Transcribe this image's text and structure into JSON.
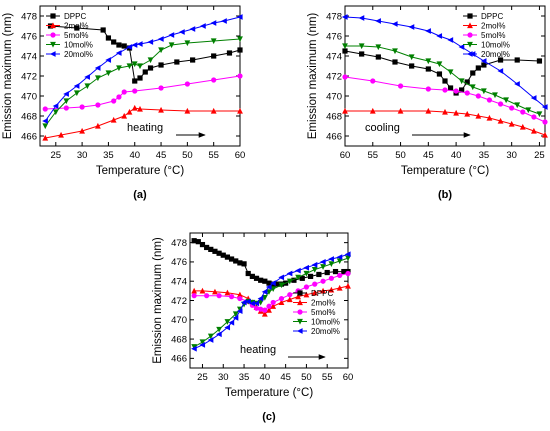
{
  "series_style": [
    {
      "name": "DPPC",
      "color": "#000000",
      "marker": "square"
    },
    {
      "name": "2mol%",
      "color": "#ff0000",
      "marker": "triangle-up"
    },
    {
      "name": "5mol%",
      "color": "#ff00ff",
      "marker": "circle"
    },
    {
      "name": "10mol%",
      "color": "#008000",
      "marker": "triangle-down"
    },
    {
      "name": "20mol%",
      "color": "#0000ff",
      "marker": "triangle-left"
    }
  ],
  "chart_data": [
    {
      "type": "line",
      "panel_label": "(a)",
      "xlabel": "Temperature (°C)",
      "ylabel": "Emission maximum (nm)",
      "xlim": [
        22,
        60
      ],
      "ylim": [
        465,
        479
      ],
      "x_ticks": [
        25,
        30,
        35,
        40,
        45,
        50,
        55,
        60
      ],
      "y_ticks": [
        466,
        468,
        470,
        472,
        474,
        476,
        478
      ],
      "annotation": "heating",
      "arrow_direction": "right",
      "series": [
        {
          "name": "DPPC",
          "x": [
            24,
            29,
            34,
            35,
            36,
            37,
            38,
            39,
            40,
            41,
            42,
            43,
            45,
            48,
            51,
            55,
            58,
            60
          ],
          "y": [
            477.0,
            476.8,
            476.6,
            475.8,
            475.4,
            475.1,
            475.0,
            474.8,
            471.5,
            471.8,
            472.4,
            472.8,
            473.1,
            473.4,
            473.6,
            474.0,
            474.3,
            474.6
          ]
        },
        {
          "name": "2mol%",
          "x": [
            23,
            26,
            30,
            33,
            36,
            38,
            39,
            40,
            41,
            45,
            50,
            55,
            60
          ],
          "y": [
            465.8,
            466.1,
            466.5,
            467.0,
            467.6,
            468.0,
            468.4,
            468.8,
            468.7,
            468.6,
            468.5,
            468.5,
            468.5
          ]
        },
        {
          "name": "5mol%",
          "x": [
            23,
            27,
            30,
            33,
            36,
            37,
            38,
            40,
            45,
            50,
            55,
            60
          ],
          "y": [
            468.7,
            468.8,
            468.9,
            469.1,
            469.5,
            469.9,
            470.4,
            470.5,
            470.8,
            471.2,
            471.6,
            472.0
          ]
        },
        {
          "name": "10mol%",
          "x": [
            23,
            25,
            27,
            29,
            31,
            33,
            35,
            37,
            39,
            40,
            41,
            43,
            45,
            47,
            50,
            55,
            60
          ],
          "y": [
            467.0,
            468.4,
            469.5,
            470.3,
            471.0,
            471.8,
            472.3,
            472.8,
            473.0,
            473.2,
            473.0,
            473.6,
            474.6,
            475.1,
            475.3,
            475.5,
            475.7
          ]
        },
        {
          "name": "20mol%",
          "x": [
            23,
            25,
            27,
            29,
            31,
            33,
            35,
            37,
            39,
            40,
            41,
            43,
            45,
            47,
            49,
            51,
            53,
            55,
            57,
            60
          ],
          "y": [
            467.5,
            469.0,
            470.2,
            471.0,
            471.9,
            472.8,
            473.6,
            474.3,
            474.9,
            475.1,
            475.2,
            475.4,
            475.7,
            476.1,
            476.4,
            476.7,
            477.0,
            477.3,
            477.5,
            477.9
          ]
        }
      ]
    },
    {
      "type": "line",
      "panel_label": "(b)",
      "xlabel": "Temperature (°C)",
      "ylabel": "Emission maximum (nm)",
      "xlim": [
        60,
        24
      ],
      "ylim": [
        465,
        479
      ],
      "x_ticks": [
        60,
        55,
        50,
        45,
        40,
        35,
        30,
        25
      ],
      "y_ticks": [
        466,
        468,
        470,
        472,
        474,
        476,
        478
      ],
      "annotation": "cooling",
      "arrow_direction": "right",
      "series": [
        {
          "name": "DPPC",
          "x": [
            60,
            57,
            54,
            51,
            48,
            45,
            43,
            42,
            41,
            40,
            39,
            38,
            37,
            36,
            35,
            32,
            29,
            25
          ],
          "y": [
            474.5,
            474.2,
            473.9,
            473.4,
            473.0,
            472.7,
            472.2,
            471.5,
            470.8,
            470.3,
            470.6,
            471.4,
            472.3,
            472.8,
            473.1,
            473.6,
            473.6,
            473.5
          ]
        },
        {
          "name": "2mol%",
          "x": [
            60,
            55,
            50,
            45,
            42,
            40,
            38,
            36,
            34,
            32,
            30,
            28,
            26,
            24
          ],
          "y": [
            468.5,
            468.5,
            468.5,
            468.5,
            468.4,
            468.3,
            468.2,
            468.0,
            467.8,
            467.5,
            467.2,
            466.9,
            466.5,
            466.1
          ]
        },
        {
          "name": "5mol%",
          "x": [
            60,
            55,
            50,
            45,
            42,
            40,
            38,
            36,
            34,
            32,
            30,
            28,
            26,
            24
          ],
          "y": [
            471.9,
            471.5,
            471.0,
            470.7,
            470.6,
            470.5,
            470.3,
            470.0,
            469.6,
            469.2,
            468.8,
            468.4,
            467.9,
            467.4
          ]
        },
        {
          "name": "10mol%",
          "x": [
            60,
            57,
            54,
            51,
            48,
            45,
            43,
            41,
            39,
            37,
            35,
            33,
            31,
            29,
            27,
            25
          ],
          "y": [
            475.0,
            475.0,
            474.9,
            474.5,
            473.9,
            473.5,
            473.2,
            472.4,
            471.5,
            470.9,
            470.5,
            470.1,
            469.6,
            469.1,
            468.6,
            468.2
          ]
        },
        {
          "name": "20mol%",
          "x": [
            60,
            57,
            54,
            51,
            48,
            45,
            43,
            41,
            39,
            37,
            35,
            32,
            29,
            26,
            24
          ],
          "y": [
            477.9,
            477.8,
            477.5,
            477.2,
            476.9,
            476.5,
            476.0,
            475.6,
            474.9,
            474.2,
            473.5,
            472.5,
            471.2,
            469.8,
            468.9
          ]
        }
      ]
    },
    {
      "type": "line",
      "panel_label": "(c)",
      "xlabel": "Temperature (°C)",
      "ylabel": "Emission maximum (nm)",
      "xlim": [
        22,
        60
      ],
      "ylim": [
        465,
        479
      ],
      "x_ticks": [
        25,
        30,
        35,
        40,
        45,
        50,
        55,
        60
      ],
      "y_ticks": [
        466,
        468,
        470,
        472,
        474,
        476,
        478
      ],
      "annotation": "heating",
      "arrow_direction": "right",
      "series": [
        {
          "name": "DPPC",
          "x": [
            23,
            24,
            25,
            26,
            27,
            28,
            29,
            30,
            31,
            32,
            33,
            34,
            35,
            36,
            37,
            38,
            39,
            40,
            41,
            42,
            43,
            44,
            45,
            47,
            49,
            51,
            53,
            55,
            57,
            59,
            60
          ],
          "y": [
            478.2,
            478.1,
            477.8,
            477.5,
            477.3,
            477.1,
            476.9,
            476.7,
            476.5,
            476.3,
            476.1,
            475.9,
            475.8,
            474.8,
            474.5,
            474.3,
            474.1,
            474.0,
            473.8,
            473.7,
            473.7,
            473.7,
            473.8,
            474.1,
            474.3,
            474.5,
            474.7,
            474.9,
            475.0,
            475.0,
            475.0
          ]
        },
        {
          "name": "2mol%",
          "x": [
            23,
            25,
            28,
            31,
            34,
            36,
            37,
            38,
            39,
            40,
            41,
            42,
            44,
            46,
            48,
            50,
            52,
            54,
            56,
            58,
            60
          ],
          "y": [
            473.0,
            473.0,
            472.9,
            472.8,
            472.6,
            472.2,
            471.8,
            471.3,
            470.9,
            470.6,
            471.0,
            471.4,
            471.8,
            472.1,
            472.4,
            472.6,
            472.8,
            473.0,
            473.1,
            473.3,
            473.5
          ]
        },
        {
          "name": "5mol%",
          "x": [
            23,
            26,
            29,
            32,
            34,
            36,
            37,
            38,
            39,
            40,
            41,
            42,
            44,
            46,
            48,
            50,
            52,
            54,
            56,
            58,
            60
          ],
          "y": [
            472.5,
            472.5,
            472.5,
            472.4,
            472.2,
            471.9,
            471.5,
            471.2,
            471.1,
            471.0,
            471.4,
            471.8,
            472.2,
            472.6,
            473.0,
            473.4,
            473.7,
            474.0,
            474.3,
            474.6,
            474.8
          ]
        },
        {
          "name": "10mol%",
          "x": [
            23,
            25,
            27,
            29,
            31,
            33,
            34,
            35,
            36,
            37,
            38,
            39,
            40,
            41,
            42,
            44,
            46,
            48,
            50,
            52,
            54,
            56,
            58,
            60
          ],
          "y": [
            467.2,
            467.7,
            468.3,
            469.0,
            469.8,
            470.6,
            471.1,
            471.6,
            471.9,
            471.8,
            471.7,
            471.8,
            472.3,
            472.9,
            473.2,
            473.6,
            474.0,
            474.4,
            474.8,
            475.2,
            475.5,
            475.8,
            476.1,
            476.4
          ]
        },
        {
          "name": "20mol%",
          "x": [
            23,
            25,
            27,
            29,
            31,
            32,
            33,
            34,
            35,
            36,
            37,
            38,
            39,
            40,
            41,
            42,
            44,
            46,
            48,
            50,
            52,
            54,
            56,
            58,
            60
          ],
          "y": [
            467.0,
            467.4,
            467.9,
            468.5,
            469.2,
            469.7,
            470.2,
            470.9,
            471.8,
            471.9,
            471.7,
            471.7,
            472.2,
            472.9,
            473.4,
            473.8,
            474.4,
            474.8,
            475.1,
            475.4,
            475.7,
            476.0,
            476.3,
            476.5,
            476.8
          ]
        }
      ]
    }
  ]
}
